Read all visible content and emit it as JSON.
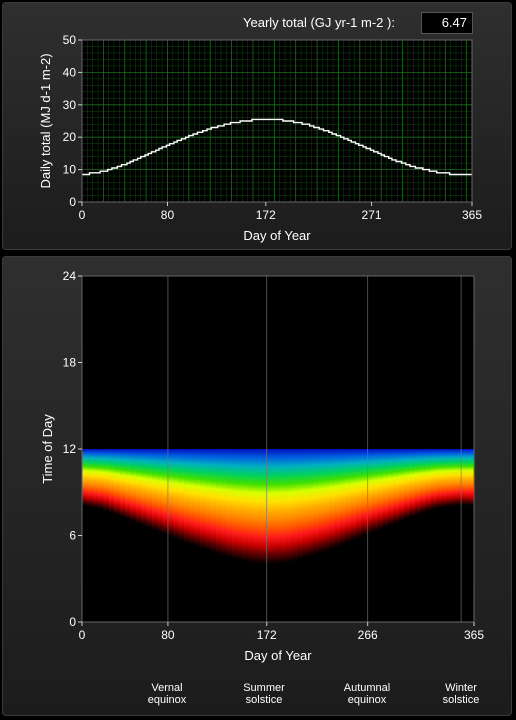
{
  "yearly": {
    "label": "Yearly total (GJ yr-1 m-2  ):",
    "value": "6.47"
  },
  "seasons": [
    {
      "line1": "Vernal",
      "line2": "equinox"
    },
    {
      "line1": "Summer",
      "line2": "solstice"
    },
    {
      "line1": "Autumnal",
      "line2": "equinox"
    },
    {
      "line1": "Winter",
      "line2": "solstice"
    }
  ],
  "chart_data": [
    {
      "type": "line",
      "xlabel": "Day of Year",
      "ylabel": "Daily total (MJ  d-1 m-2)",
      "xlim": [
        0,
        365
      ],
      "ylim": [
        0,
        50
      ],
      "xticks": [
        "0",
        "80",
        "172",
        "271",
        "365"
      ],
      "yticks": [
        "0",
        "10",
        "20",
        "30",
        "40",
        "50"
      ],
      "grid": true,
      "line_color": "#ffffff",
      "grid_color": "#1e7a1e",
      "x": [
        0,
        20,
        40,
        60,
        80,
        100,
        120,
        140,
        160,
        172,
        190,
        210,
        230,
        250,
        271,
        290,
        310,
        330,
        350,
        365
      ],
      "y": [
        8.4,
        9.4,
        11.6,
        14.5,
        17.5,
        20.3,
        22.7,
        24.4,
        25.3,
        25.5,
        25.2,
        24.0,
        21.8,
        19.0,
        16.0,
        13.2,
        10.9,
        9.3,
        8.5,
        8.4
      ]
    },
    {
      "type": "heatmap",
      "xlabel": "Day of Year",
      "ylabel": "Time of Day",
      "xlim": [
        0,
        365
      ],
      "ylim": [
        0,
        24
      ],
      "xticks": [
        "0",
        "80",
        "172",
        "266",
        "365"
      ],
      "yticks": [
        "0",
        "6",
        "12",
        "18",
        "24"
      ],
      "vlines": [
        80,
        172,
        266,
        353
      ],
      "sunrise_x": [
        0,
        20,
        40,
        60,
        80,
        100,
        120,
        140,
        160,
        172,
        190,
        210,
        230,
        250,
        266,
        290,
        310,
        330,
        350,
        365
      ],
      "sunrise_y": [
        8.1,
        7.8,
        7.2,
        6.6,
        6.0,
        5.4,
        4.9,
        4.4,
        4.1,
        4.0,
        4.1,
        4.5,
        5.0,
        5.6,
        6.1,
        6.8,
        7.4,
        7.9,
        8.1,
        8.1
      ],
      "noon_hour": 12,
      "colormap": [
        "#000000",
        "#5a0000",
        "#c80000",
        "#ff1a1a",
        "#ff5500",
        "#ff8800",
        "#ffb000",
        "#ffe000",
        "#d8ff00",
        "#40e000",
        "#00d060",
        "#00b0c0",
        "#0060e0",
        "#0010c0"
      ]
    }
  ]
}
